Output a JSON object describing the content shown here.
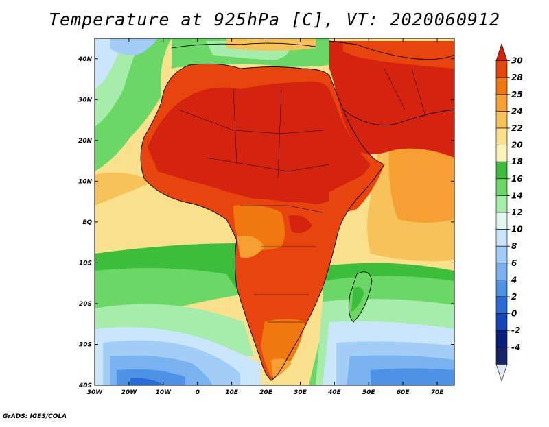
{
  "title": "Temperature at 925hPa [C], VT: 2020060912",
  "footer": "GrADS: IGES/COLA",
  "map": {
    "lon_range": [
      -30,
      75
    ],
    "lat_range": [
      -40,
      45
    ],
    "lon_ticks": [
      {
        "value": -30,
        "label": "30W"
      },
      {
        "value": -20,
        "label": "20W"
      },
      {
        "value": -10,
        "label": "10W"
      },
      {
        "value": 0,
        "label": "0"
      },
      {
        "value": 10,
        "label": "10E"
      },
      {
        "value": 20,
        "label": "20E"
      },
      {
        "value": 30,
        "label": "30E"
      },
      {
        "value": 40,
        "label": "40E"
      },
      {
        "value": 50,
        "label": "50E"
      },
      {
        "value": 60,
        "label": "60E"
      },
      {
        "value": 70,
        "label": "70E"
      }
    ],
    "lat_ticks": [
      {
        "value": 40,
        "label": "40N"
      },
      {
        "value": 30,
        "label": "30N"
      },
      {
        "value": 20,
        "label": "20N"
      },
      {
        "value": 10,
        "label": "10N"
      },
      {
        "value": 0,
        "label": "EQ"
      },
      {
        "value": -10,
        "label": "10S"
      },
      {
        "value": -20,
        "label": "20S"
      },
      {
        "value": -30,
        "label": "30S"
      },
      {
        "value": -40,
        "label": "40S"
      }
    ]
  },
  "colorbar": {
    "labels": [
      "30",
      "28",
      "25",
      "24",
      "22",
      "20",
      "18",
      "16",
      "14",
      "12",
      "10",
      "8",
      "6",
      "4",
      "2",
      "0",
      "-2",
      "-4"
    ],
    "colors": [
      "#d42410",
      "#e8440e",
      "#f0780e",
      "#f6a033",
      "#f8c25a",
      "#fae18e",
      "#fcf4b8",
      "#3cbe3c",
      "#6ad766",
      "#a6ecaa",
      "#e2f8ee",
      "#cae6fa",
      "#a2cdf6",
      "#78b2f0",
      "#4e92e6",
      "#2a6cd8",
      "#1446b8",
      "#0a1f82",
      "#162468",
      "#e6e6fa"
    ]
  }
}
